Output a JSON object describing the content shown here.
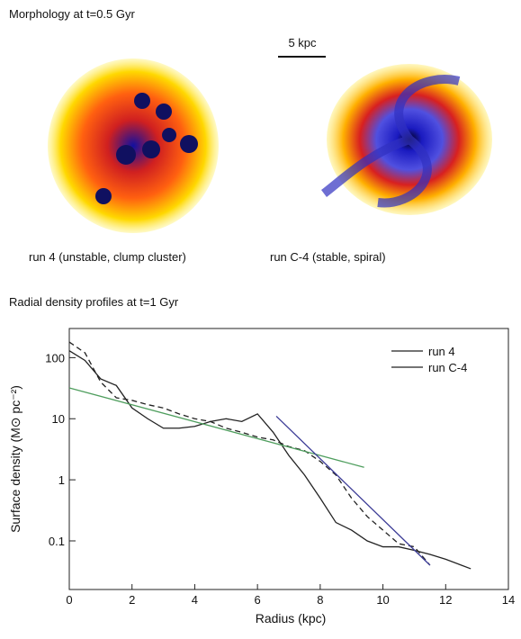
{
  "header": {
    "title": "Morphology at t=0.5 Gyr",
    "scale_bar": "5 kpc"
  },
  "panels": [
    {
      "caption": "run 4  (unstable, clump cluster)"
    },
    {
      "caption": "run C-4 (stable, spiral)"
    }
  ],
  "chart_data": {
    "type": "line",
    "title": "Radial density profiles at t=1 Gyr",
    "xlabel": "Radius (kpc)",
    "ylabel": "Surface density (M⊙ pc⁻²)",
    "xlim": [
      0,
      14
    ],
    "xticks": [
      0,
      2,
      4,
      6,
      8,
      10,
      12,
      14
    ],
    "ylim": [
      0.016,
      300
    ],
    "yticks": [
      0.1,
      1,
      10,
      100
    ],
    "ylog": true,
    "legend": "upper right",
    "series": [
      {
        "name": "run 4",
        "color": "#222222",
        "x": [
          0,
          0.5,
          1,
          1.5,
          2,
          2.5,
          3,
          3.5,
          4,
          4.5,
          5,
          5.5,
          6,
          6.5,
          7,
          7.5,
          8,
          8.5,
          9,
          9.5,
          10,
          10.5,
          11,
          11.5,
          12,
          12.5,
          12.8
        ],
        "values": [
          130,
          90,
          45,
          35,
          15,
          10,
          7,
          7,
          7.5,
          9,
          10,
          9,
          12,
          6,
          2.5,
          1.2,
          0.5,
          0.2,
          0.15,
          0.1,
          0.08,
          0.08,
          0.07,
          0.06,
          0.05,
          0.04,
          0.035
        ]
      },
      {
        "name": "run C-4",
        "color": "#222222",
        "dashed": true,
        "x": [
          0,
          0.5,
          1,
          1.5,
          2,
          2.5,
          3,
          3.5,
          4,
          4.5,
          5,
          5.5,
          6,
          6.5,
          7,
          7.5,
          8,
          8.5,
          9,
          9.5,
          10,
          10.5,
          11,
          11.5
        ],
        "values": [
          180,
          120,
          40,
          22,
          20,
          17,
          15,
          12,
          10,
          9,
          7,
          6,
          5,
          4.5,
          3.5,
          3,
          2,
          1.2,
          0.5,
          0.25,
          0.15,
          0.09,
          0.08,
          0.04
        ]
      },
      {
        "color": "#4f9e5e",
        "x": [
          0,
          9.4
        ],
        "values": [
          32,
          1.6
        ]
      },
      {
        "color": "#3b3b96",
        "x": [
          6.6,
          11.5
        ],
        "values": [
          11,
          0.04
        ]
      }
    ]
  }
}
